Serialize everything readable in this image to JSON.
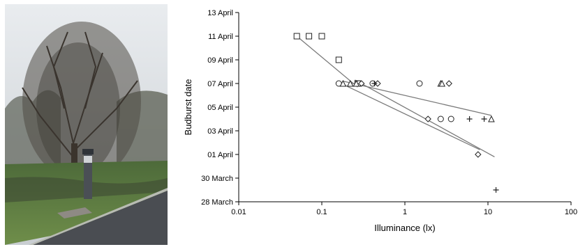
{
  "photo": {
    "description_icon": "tree-with-street-lamp-photo"
  },
  "chart_data": {
    "type": "scatter",
    "xscale": "log",
    "xlim": [
      0.01,
      100
    ],
    "xticks": [
      "0.01",
      "0.1",
      "1",
      "10",
      "100"
    ],
    "xlabel": "Illuminance (lx)",
    "ylabel": "Budburst date",
    "ylim": [
      "2024-03-28",
      "2024-04-13"
    ],
    "yticks": [
      "13 April",
      "11 April",
      "09 April",
      "07 April",
      "05 April",
      "03 April",
      "01 April",
      "30 March",
      "28 March"
    ],
    "grid": false,
    "legend": "none",
    "series": [
      {
        "marker": "square",
        "points": [
          [
            0.05,
            "2024-04-11"
          ],
          [
            0.07,
            "2024-04-11"
          ],
          [
            0.1,
            "2024-04-11"
          ],
          [
            0.16,
            "2024-04-09"
          ],
          [
            0.27,
            "2024-04-07"
          ]
        ],
        "trend": [
          [
            0.05,
            "2024-04-11"
          ],
          [
            0.27,
            "2024-04-06.7"
          ]
        ]
      },
      {
        "marker": "circle",
        "points": [
          [
            0.16,
            "2024-04-07"
          ],
          [
            0.28,
            "2024-04-07"
          ],
          [
            0.41,
            "2024-04-07"
          ],
          [
            1.5,
            "2024-04-07"
          ],
          [
            2.7,
            "2024-04-04"
          ],
          [
            3.6,
            "2024-04-04"
          ]
        ],
        "trend": [
          [
            0.16,
            "2024-04-07.1"
          ],
          [
            8.0,
            "2024-04-01.4"
          ]
        ]
      },
      {
        "marker": "triangle",
        "points": [
          [
            0.18,
            "2024-04-07"
          ],
          [
            0.22,
            "2024-04-07"
          ],
          [
            0.26,
            "2024-04-07"
          ],
          [
            2.7,
            "2024-04-07"
          ],
          [
            2.8,
            "2024-04-07"
          ],
          [
            11,
            "2024-04-04"
          ]
        ],
        "trend": [
          [
            0.18,
            "2024-04-07.2"
          ],
          [
            11,
            "2024-04-04.3"
          ]
        ]
      },
      {
        "marker": "diamond",
        "points": [
          [
            0.3,
            "2024-04-07"
          ],
          [
            0.47,
            "2024-04-07"
          ],
          [
            3.4,
            "2024-04-07"
          ],
          [
            1.9,
            "2024-04-04"
          ],
          [
            7.6,
            "2024-04-01"
          ]
        ],
        "trend": [
          [
            0.25,
            "2024-04-07.3"
          ],
          [
            12,
            "2024-03-31.8"
          ]
        ]
      },
      {
        "marker": "plus",
        "points": [
          [
            0.43,
            "2024-04-07"
          ],
          [
            6.0,
            "2024-04-04"
          ],
          [
            9.0,
            "2024-04-04"
          ],
          [
            12.5,
            "2024-03-29"
          ]
        ],
        "trend": []
      }
    ]
  }
}
